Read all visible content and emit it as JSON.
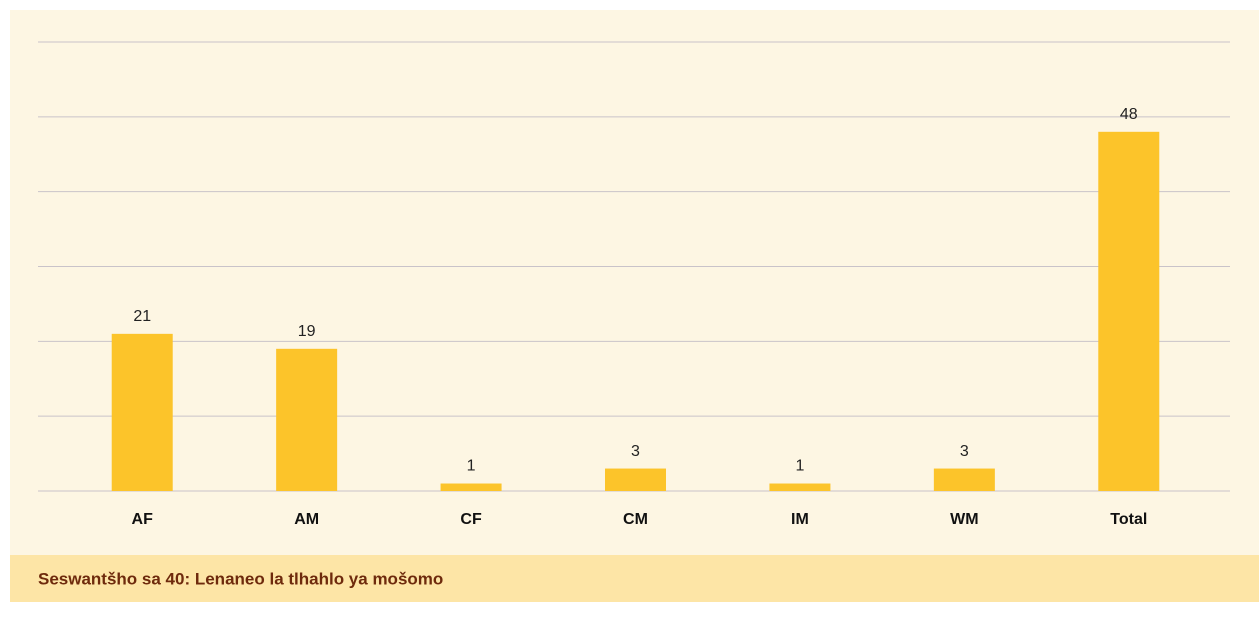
{
  "chart_data": {
    "type": "bar",
    "categories": [
      "AF",
      "AM",
      "CF",
      "CM",
      "IM",
      "WM",
      "Total"
    ],
    "values": [
      21,
      19,
      1,
      3,
      1,
      3,
      48
    ],
    "color": "#fcc42a",
    "ylim": [
      0,
      60
    ],
    "yticks": [
      0,
      10,
      20,
      30,
      40,
      50,
      60
    ],
    "grid": true,
    "caption": "Seswantšho sa 40: Lenaneo la tlhahlo ya mošomo"
  }
}
